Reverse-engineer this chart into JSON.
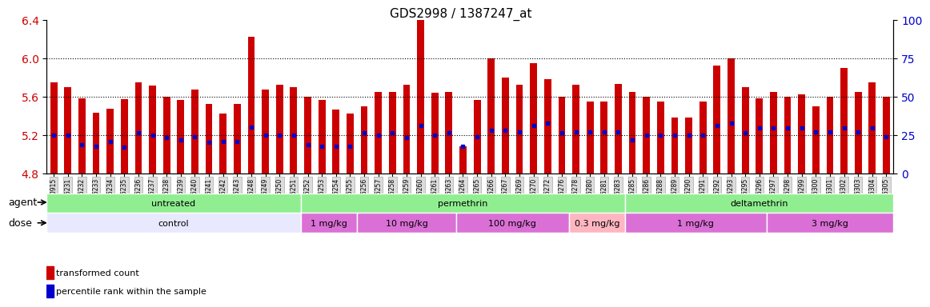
{
  "title": "GDS2998 / 1387247_at",
  "samples": [
    "GSM190915",
    "GSM195231",
    "GSM195232",
    "GSM195233",
    "GSM195234",
    "GSM195235",
    "GSM195236",
    "GSM195237",
    "GSM195238",
    "GSM195239",
    "GSM195240",
    "GSM195241",
    "GSM195242",
    "GSM195243",
    "GSM195248",
    "GSM195249",
    "GSM195250",
    "GSM195251",
    "GSM195252",
    "GSM195253",
    "GSM195254",
    "GSM195255",
    "GSM195256",
    "GSM195257",
    "GSM195258",
    "GSM195259",
    "GSM195260",
    "GSM195261",
    "GSM195263",
    "GSM195264",
    "GSM195265",
    "GSM195266",
    "GSM195267",
    "GSM195269",
    "GSM195270",
    "GSM195272",
    "GSM195276",
    "GSM195278",
    "GSM195280",
    "GSM195281",
    "GSM195283",
    "GSM195285",
    "GSM195286",
    "GSM195288",
    "GSM195289",
    "GSM195290",
    "GSM195291",
    "GSM195292",
    "GSM195293",
    "GSM195295",
    "GSM195296",
    "GSM195297",
    "GSM195298",
    "GSM195299",
    "GSM195300",
    "GSM195301",
    "GSM195302",
    "GSM195303",
    "GSM195304",
    "GSM195305"
  ],
  "red_values": [
    5.75,
    5.7,
    5.58,
    5.43,
    5.47,
    5.57,
    5.75,
    5.71,
    5.6,
    5.56,
    5.67,
    5.52,
    5.42,
    5.52,
    6.22,
    5.67,
    5.72,
    5.7,
    5.6,
    5.56,
    5.46,
    5.42,
    5.5,
    5.65,
    5.65,
    5.72,
    6.4,
    5.64,
    5.65,
    5.08,
    5.56,
    6.0,
    5.8,
    5.72,
    5.95,
    5.78,
    5.6,
    5.72,
    5.55,
    5.55,
    5.73,
    5.65,
    5.6,
    5.55,
    5.38,
    5.38,
    5.55,
    5.92,
    6.0,
    5.7,
    5.58,
    5.65,
    5.6,
    5.62,
    5.5,
    5.6,
    5.9,
    5.65,
    5.75,
    5.6
  ],
  "blue_values": [
    5.2,
    5.2,
    5.1,
    5.08,
    5.13,
    5.07,
    5.22,
    5.2,
    5.17,
    5.15,
    5.18,
    5.12,
    5.13,
    5.13,
    5.28,
    5.2,
    5.2,
    5.2,
    5.1,
    5.08,
    5.08,
    5.08,
    5.22,
    5.2,
    5.22,
    5.17,
    5.3,
    5.2,
    5.22,
    5.08,
    5.18,
    5.25,
    5.25,
    5.23,
    5.3,
    5.32,
    5.22,
    5.23,
    5.23,
    5.23,
    5.23,
    5.15,
    5.2,
    5.2,
    5.2,
    5.2,
    5.2,
    5.3,
    5.32,
    5.22,
    5.27,
    5.27,
    5.27,
    5.27,
    5.23,
    5.23,
    5.27,
    5.23,
    5.27,
    5.18
  ],
  "ylim": [
    4.8,
    6.4
  ],
  "yticks": [
    4.8,
    5.2,
    5.6,
    6.0,
    6.4
  ],
  "right_yticks": [
    0,
    25,
    50,
    75,
    100
  ],
  "right_ylim": [
    0,
    100
  ],
  "agent_groups": [
    {
      "label": "untreated",
      "start": 0,
      "end": 18,
      "color": "#90EE90"
    },
    {
      "label": "permethrin",
      "start": 18,
      "end": 41,
      "color": "#90EE90"
    },
    {
      "label": "deltamethrin",
      "start": 41,
      "end": 60,
      "color": "#90EE90"
    }
  ],
  "dose_groups": [
    {
      "label": "control",
      "start": 0,
      "end": 18,
      "color": "#E8E8FF"
    },
    {
      "label": "1 mg/kg",
      "start": 18,
      "end": 22,
      "color": "#DA70D6"
    },
    {
      "label": "10 mg/kg",
      "start": 22,
      "end": 29,
      "color": "#DA70D6"
    },
    {
      "label": "100 mg/kg",
      "start": 29,
      "end": 37,
      "color": "#DA70D6"
    },
    {
      "label": "0.3 mg/kg",
      "start": 37,
      "end": 41,
      "color": "#FFB6C1"
    },
    {
      "label": "1 mg/kg",
      "start": 41,
      "end": 51,
      "color": "#DA70D6"
    },
    {
      "label": "3 mg/kg",
      "start": 51,
      "end": 60,
      "color": "#DA70D6"
    }
  ],
  "bar_color": "#CC0000",
  "dot_color": "#0000CC",
  "bg_color": "#F0F0F0",
  "grid_color": "#000000",
  "title_color": "#000000",
  "left_axis_color": "#CC0000",
  "right_axis_color": "#0000CC"
}
